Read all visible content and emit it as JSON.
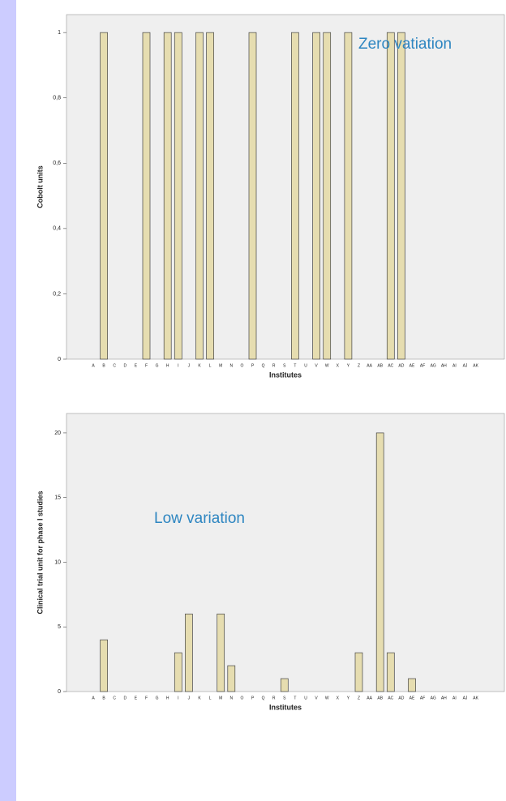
{
  "chart_data": [
    {
      "type": "bar",
      "y_label": "Cobolt units",
      "x_label": "Institutes",
      "annotation": "Zero vatiation",
      "categories": [
        "A",
        "B",
        "C",
        "D",
        "E",
        "F",
        "G",
        "H",
        "I",
        "J",
        "K",
        "L",
        "M",
        "N",
        "O",
        "P",
        "Q",
        "R",
        "S",
        "T",
        "U",
        "V",
        "W",
        "X",
        "Y",
        "Z",
        "AA",
        "AB",
        "AC",
        "AD",
        "AE",
        "AF",
        "AG",
        "AH",
        "AI",
        "AJ",
        "AK"
      ],
      "values": [
        0,
        1,
        0,
        0,
        0,
        1,
        0,
        1,
        1,
        0,
        1,
        1,
        0,
        0,
        0,
        1,
        0,
        0,
        0,
        1,
        0,
        1,
        1,
        0,
        1,
        0,
        0,
        0,
        1,
        1,
        0,
        0,
        0,
        0,
        0,
        0,
        0
      ],
      "color": "#e6ddb0",
      "ylim": [
        0,
        1.055
      ],
      "yticks": [
        0,
        {
          "value": 0.2,
          "label": "0,2"
        },
        {
          "value": 0.4,
          "label": "0,4"
        },
        {
          "value": 0.6,
          "label": "0,6"
        },
        {
          "value": 0.8,
          "label": "0,8"
        },
        1
      ]
    },
    {
      "type": "bar",
      "y_label": "Clinical trial unit for phase I studies",
      "x_label": "Institutes",
      "annotation": "Low variation",
      "categories": [
        "A",
        "B",
        "C",
        "D",
        "E",
        "F",
        "G",
        "H",
        "I",
        "J",
        "K",
        "L",
        "M",
        "N",
        "O",
        "P",
        "Q",
        "R",
        "S",
        "T",
        "U",
        "V",
        "W",
        "X",
        "Y",
        "Z",
        "AA",
        "AB",
        "AC",
        "AD",
        "AE",
        "AF",
        "AG",
        "AH",
        "AI",
        "AJ",
        "AK"
      ],
      "values": [
        0,
        4,
        0,
        0,
        0,
        0,
        0,
        0,
        3,
        6,
        0,
        0,
        6,
        2,
        0,
        0,
        0,
        0,
        1,
        0,
        0,
        0,
        0,
        0,
        0,
        3,
        0,
        20,
        3,
        0,
        1,
        0,
        0,
        0,
        0,
        0,
        0
      ],
      "color": "#e6ddb0",
      "ylim": [
        0,
        21.5
      ],
      "yticks": [
        0,
        5,
        10,
        15,
        20
      ]
    }
  ]
}
